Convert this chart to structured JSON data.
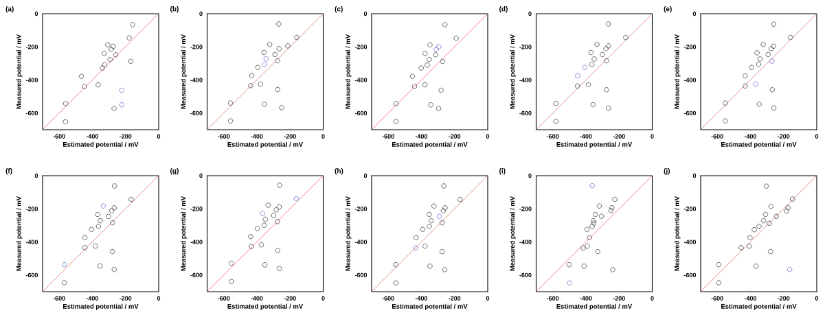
{
  "chart_data": [
    {
      "type": "scatter",
      "title": "(a)",
      "xlabel": "Estimated potential / mV",
      "ylabel": "Measured potential / mV",
      "xlim": [
        -700,
        0
      ],
      "ylim": [
        -700,
        0
      ],
      "xticks": [
        -600,
        -400,
        -200,
        0
      ],
      "yticks": [
        -600,
        -400,
        -200,
        0
      ],
      "marker": "circle",
      "series": [
        {
          "color": "#404040",
          "x": [
            -157,
            -178,
            -307,
            -274,
            -286,
            -329,
            -259,
            -293,
            -326,
            -340,
            -168,
            -466,
            -448,
            -365,
            -561,
            -269,
            -562
          ],
          "values": [
            -66,
            -146,
            -188,
            -197,
            -215,
            -239,
            -248,
            -276,
            -309,
            -328,
            -287,
            -378,
            -439,
            -429,
            -542,
            -572,
            -652
          ]
        },
        {
          "color": "#6a6ad0",
          "x": [
            -223,
            -223
          ],
          "values": [
            -462,
            -550
          ]
        },
        {
          "type": "line",
          "marker": "none",
          "color": "#e06666",
          "x": [
            -700,
            0
          ],
          "values": [
            -700,
            0
          ]
        }
      ]
    },
    {
      "type": "scatter",
      "title": "(b)",
      "xlabel": "Estimated potential / mV",
      "ylabel": "Measured potential / mV",
      "xlim": [
        -700,
        0
      ],
      "ylim": [
        -700,
        0
      ],
      "xticks": [
        -600,
        -400,
        -200,
        0
      ],
      "yticks": [
        -600,
        -400,
        -200,
        0
      ],
      "marker": "circle",
      "series": [
        {
          "color": "#404040",
          "x": [
            -268,
            -160,
            -323,
            -214,
            -266,
            -357,
            -291,
            -275,
            -394,
            -431,
            -437,
            -378,
            -275,
            -559,
            -355,
            -250,
            -559
          ],
          "values": [
            -62,
            -143,
            -185,
            -194,
            -211,
            -234,
            -246,
            -284,
            -324,
            -374,
            -434,
            -425,
            -458,
            -539,
            -546,
            -567,
            -647
          ]
        },
        {
          "color": "#6a6ad0",
          "x": [
            -344,
            -355
          ],
          "values": [
            -272,
            -305
          ]
        },
        {
          "type": "line",
          "marker": "none",
          "color": "#e06666",
          "x": [
            -700,
            0
          ],
          "values": [
            -700,
            0
          ]
        }
      ]
    },
    {
      "type": "scatter",
      "title": "(c)",
      "xlabel": "Estimated potential / mV",
      "ylabel": "Measured potential / mV",
      "xlim": [
        -700,
        0
      ],
      "ylim": [
        -700,
        0
      ],
      "xticks": [
        -600,
        -400,
        -200,
        0
      ],
      "yticks": [
        -600,
        -400,
        -200,
        0
      ],
      "marker": "circle",
      "series": [
        {
          "color": "#404040",
          "x": [
            -258,
            -190,
            -348,
            -378,
            -314,
            -353,
            -365,
            -272,
            -401,
            -454,
            -441,
            -378,
            -281,
            -553,
            -343,
            -296,
            -553
          ],
          "values": [
            -66,
            -148,
            -188,
            -239,
            -248,
            -276,
            -310,
            -288,
            -328,
            -378,
            -439,
            -429,
            -462,
            -542,
            -550,
            -571,
            -651
          ]
        },
        {
          "color": "#6a6ad0",
          "x": [
            -295,
            -311
          ],
          "values": [
            -199,
            -215
          ]
        },
        {
          "type": "line",
          "marker": "none",
          "color": "#e06666",
          "x": [
            -700,
            0
          ],
          "values": [
            -700,
            0
          ]
        }
      ]
    },
    {
      "type": "scatter",
      "title": "(d)",
      "xlabel": "Estimated potential / mV",
      "ylabel": "Measured potential / mV",
      "xlim": [
        -700,
        0
      ],
      "ylim": [
        -700,
        0
      ],
      "xticks": [
        -600,
        -400,
        -200,
        0
      ],
      "yticks": [
        -600,
        -400,
        -200,
        0
      ],
      "marker": "circle",
      "series": [
        {
          "color": "#404040",
          "x": [
            -265,
            -160,
            -333,
            -264,
            -279,
            -369,
            -301,
            -350,
            -276,
            -364,
            -451,
            -385,
            -276,
            -581,
            -357,
            -264,
            -581
          ],
          "values": [
            -62,
            -143,
            -185,
            -194,
            -211,
            -234,
            -246,
            -273,
            -284,
            -306,
            -436,
            -428,
            -459,
            -541,
            -549,
            -570,
            -650
          ]
        },
        {
          "color": "#6a6ad0",
          "x": [
            -406,
            -450
          ],
          "values": [
            -324,
            -375
          ]
        },
        {
          "type": "line",
          "marker": "none",
          "color": "#e06666",
          "x": [
            -700,
            0
          ],
          "values": [
            -700,
            0
          ]
        }
      ]
    },
    {
      "type": "scatter",
      "title": "(e)",
      "xlabel": "Estimated potential / mV",
      "ylabel": "Measured potential / mV",
      "xlim": [
        -700,
        0
      ],
      "ylim": [
        -700,
        0
      ],
      "xticks": [
        -600,
        -400,
        -200,
        0
      ],
      "yticks": [
        -600,
        -400,
        -200,
        0
      ],
      "marker": "circle",
      "series": [
        {
          "color": "#404040",
          "x": [
            -260,
            -159,
            -323,
            -260,
            -275,
            -360,
            -293,
            -342,
            -351,
            -393,
            -432,
            -432,
            -268,
            -552,
            -347,
            -259,
            -552
          ],
          "values": [
            -63,
            -143,
            -185,
            -196,
            -211,
            -236,
            -246,
            -273,
            -306,
            -324,
            -375,
            -436,
            -459,
            -539,
            -546,
            -568,
            -647
          ]
        },
        {
          "color": "#6a6ad0",
          "x": [
            -270,
            -368
          ],
          "values": [
            -286,
            -425
          ]
        },
        {
          "type": "line",
          "marker": "none",
          "color": "#e06666",
          "x": [
            -700,
            0
          ],
          "values": [
            -700,
            0
          ]
        }
      ]
    },
    {
      "type": "scatter",
      "title": "(f)",
      "xlabel": "Estimated potential / mV",
      "ylabel": "Measured potential / mV",
      "xlim": [
        -700,
        0
      ],
      "ylim": [
        -700,
        0
      ],
      "xticks": [
        -600,
        -400,
        -200,
        0
      ],
      "yticks": [
        -600,
        -400,
        -200,
        0
      ],
      "marker": "circle",
      "series": [
        {
          "color": "#404040",
          "x": [
            -266,
            -166,
            -268,
            -283,
            -368,
            -302,
            -352,
            -278,
            -363,
            -404,
            -445,
            -445,
            -382,
            -278,
            -354,
            -268,
            -569
          ],
          "values": [
            -62,
            -143,
            -194,
            -212,
            -234,
            -246,
            -272,
            -284,
            -306,
            -324,
            -374,
            -434,
            -425,
            -458,
            -545,
            -566,
            -646
          ]
        },
        {
          "color": "#6a6ad0",
          "x": [
            -334,
            -569
          ],
          "values": [
            -183,
            -537
          ]
        },
        {
          "type": "line",
          "marker": "none",
          "color": "#e06666",
          "x": [
            -700,
            0
          ],
          "values": [
            -700,
            0
          ]
        }
      ]
    },
    {
      "type": "scatter",
      "title": "(g)",
      "xlabel": "Estimated potential / mV",
      "ylabel": "Measured potential / mV",
      "xlim": [
        -700,
        0
      ],
      "ylim": [
        -700,
        0
      ],
      "xticks": [
        -600,
        -400,
        -200,
        0
      ],
      "yticks": [
        -600,
        -400,
        -200,
        0
      ],
      "marker": "circle",
      "series": [
        {
          "color": "#404040",
          "x": [
            -263,
            -332,
            -265,
            -283,
            -299,
            -349,
            -356,
            -276,
            -397,
            -437,
            -433,
            -373,
            -274,
            -554,
            -352,
            -265,
            -554
          ],
          "values": [
            -58,
            -178,
            -188,
            -206,
            -239,
            -263,
            -299,
            -277,
            -319,
            -368,
            -428,
            -417,
            -451,
            -528,
            -538,
            -560,
            -639
          ]
        },
        {
          "color": "#6a6ad0",
          "x": [
            -162,
            -366
          ],
          "values": [
            -139,
            -228
          ]
        },
        {
          "type": "line",
          "marker": "none",
          "color": "#e06666",
          "x": [
            -700,
            0
          ],
          "values": [
            -700,
            0
          ]
        }
      ]
    },
    {
      "type": "scatter",
      "title": "(h)",
      "xlabel": "Estimated potential / mV",
      "ylabel": "Measured potential / mV",
      "xlim": [
        -700,
        0
      ],
      "ylim": [
        -700,
        0
      ],
      "xticks": [
        -600,
        -400,
        -200,
        0
      ],
      "yticks": [
        -600,
        -400,
        -200,
        0
      ],
      "marker": "circle",
      "series": [
        {
          "color": "#404040",
          "x": [
            -265,
            -167,
            -324,
            -257,
            -268,
            -353,
            -341,
            -352,
            -275,
            -392,
            -432,
            -378,
            -275,
            -554,
            -348,
            -259,
            -554
          ],
          "values": [
            -62,
            -143,
            -183,
            -194,
            -212,
            -234,
            -272,
            -306,
            -284,
            -324,
            -374,
            -425,
            -458,
            -537,
            -546,
            -567,
            -647
          ]
        },
        {
          "color": "#6a6ad0",
          "x": [
            -292,
            -435
          ],
          "values": [
            -246,
            -436
          ]
        },
        {
          "type": "line",
          "marker": "none",
          "color": "#e06666",
          "x": [
            -700,
            0
          ],
          "values": [
            -700,
            0
          ]
        }
      ]
    },
    {
      "type": "scatter",
      "title": "(i)",
      "xlabel": "Estimated potential / mV",
      "ylabel": "Measured potential / mV",
      "xlim": [
        -700,
        0
      ],
      "ylim": [
        -700,
        0
      ],
      "xticks": [
        -600,
        -400,
        -200,
        0
      ],
      "yticks": [
        -600,
        -400,
        -200,
        0
      ],
      "marker": "circle",
      "series": [
        {
          "color": "#404040",
          "x": [
            -226,
            -319,
            -243,
            -249,
            -343,
            -306,
            -355,
            -352,
            -362,
            -393,
            -378,
            -392,
            -416,
            -329,
            -501,
            -411,
            -238
          ],
          "values": [
            -143,
            -183,
            -193,
            -210,
            -234,
            -245,
            -272,
            -286,
            -306,
            -324,
            -374,
            -425,
            -436,
            -458,
            -537,
            -546,
            -567
          ]
        },
        {
          "color": "#6a6ad0",
          "x": [
            -362,
            -499
          ],
          "values": [
            -61,
            -647
          ]
        },
        {
          "type": "line",
          "marker": "none",
          "color": "#e06666",
          "x": [
            -700,
            0
          ],
          "values": [
            -700,
            0
          ]
        }
      ]
    },
    {
      "type": "scatter",
      "title": "(j)",
      "xlabel": "Estimated potential / mV",
      "ylabel": "Measured potential / mV",
      "xlim": [
        -700,
        0
      ],
      "ylim": [
        -700,
        0
      ],
      "xticks": [
        -600,
        -400,
        -200,
        0
      ],
      "yticks": [
        -600,
        -400,
        -200,
        0
      ],
      "marker": "circle",
      "series": [
        {
          "color": "#404040",
          "x": [
            -304,
            -276,
            -309,
            -320,
            -348,
            -377,
            -402,
            -407,
            -456,
            -286,
            -244,
            -173,
            -182,
            -146,
            -279,
            -367,
            -591,
            -591
          ],
          "values": [
            -63,
            -185,
            -234,
            -272,
            -306,
            -326,
            -374,
            -425,
            -434,
            -287,
            -246,
            -194,
            -213,
            -141,
            -458,
            -546,
            -537,
            -646
          ]
        },
        {
          "color": "#6a6ad0",
          "x": [
            -163
          ],
          "values": [
            -566
          ]
        },
        {
          "type": "line",
          "marker": "none",
          "color": "#e06666",
          "x": [
            -700,
            0
          ],
          "values": [
            -700,
            0
          ]
        }
      ]
    }
  ]
}
